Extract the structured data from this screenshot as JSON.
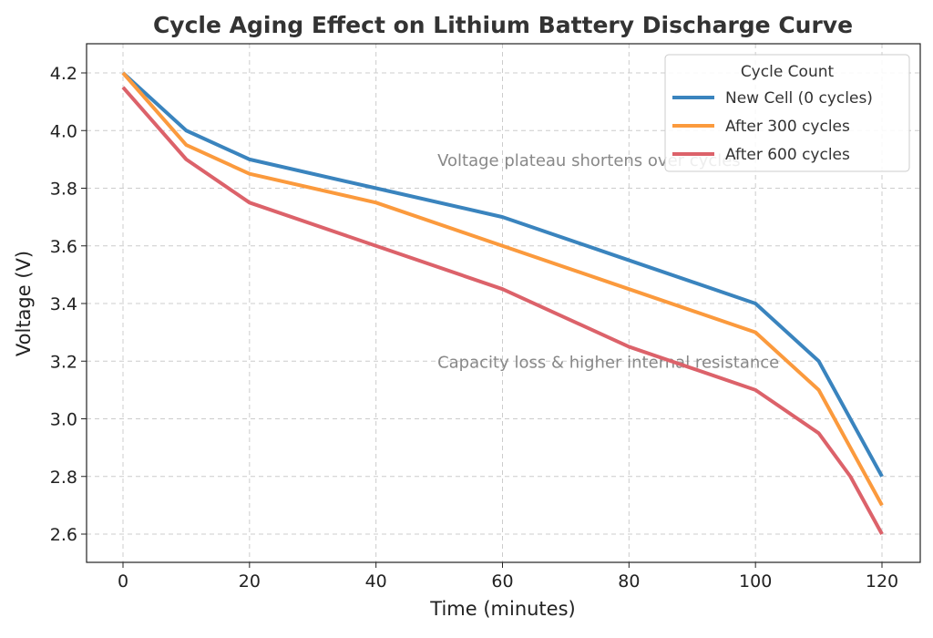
{
  "chart_data": {
    "type": "line",
    "title": "Cycle Aging Effect on Lithium Battery Discharge Curve",
    "xlabel": "Time (minutes)",
    "ylabel": "Voltage (V)",
    "xlim": [
      -5,
      125
    ],
    "ylim": [
      2.5,
      4.3
    ],
    "xticks": [
      0,
      20,
      40,
      60,
      80,
      100,
      120
    ],
    "yticks": [
      2.6,
      2.8,
      3.0,
      3.2,
      3.4,
      3.6,
      3.8,
      4.0,
      4.2
    ],
    "grid": true,
    "legend": {
      "title": "Cycle Count",
      "placement": "top-right"
    },
    "series": [
      {
        "name": "New Cell (0 cycles)",
        "color": "#3a84be",
        "x": [
          0,
          10,
          20,
          40,
          60,
          80,
          100,
          110,
          120
        ],
        "y": [
          4.2,
          4.0,
          3.9,
          3.8,
          3.7,
          3.55,
          3.4,
          3.2,
          2.8
        ]
      },
      {
        "name": "After 300 cycles",
        "color": "#fb9a3d",
        "x": [
          0,
          10,
          20,
          40,
          60,
          80,
          100,
          110,
          120
        ],
        "y": [
          4.2,
          3.95,
          3.85,
          3.75,
          3.6,
          3.45,
          3.3,
          3.1,
          2.7
        ]
      },
      {
        "name": "After 600 cycles",
        "color": "#dc626a",
        "x": [
          0,
          10,
          20,
          40,
          60,
          80,
          100,
          110,
          115,
          120
        ],
        "y": [
          4.15,
          3.9,
          3.75,
          3.6,
          3.45,
          3.25,
          3.1,
          2.95,
          2.8,
          2.6
        ]
      }
    ],
    "annotations": [
      {
        "text": "Voltage plateau shortens over cycles",
        "x": 50,
        "y": 3.9
      },
      {
        "text": "Capacity loss & higher internal resistance",
        "x": 50,
        "y": 3.2
      }
    ]
  }
}
